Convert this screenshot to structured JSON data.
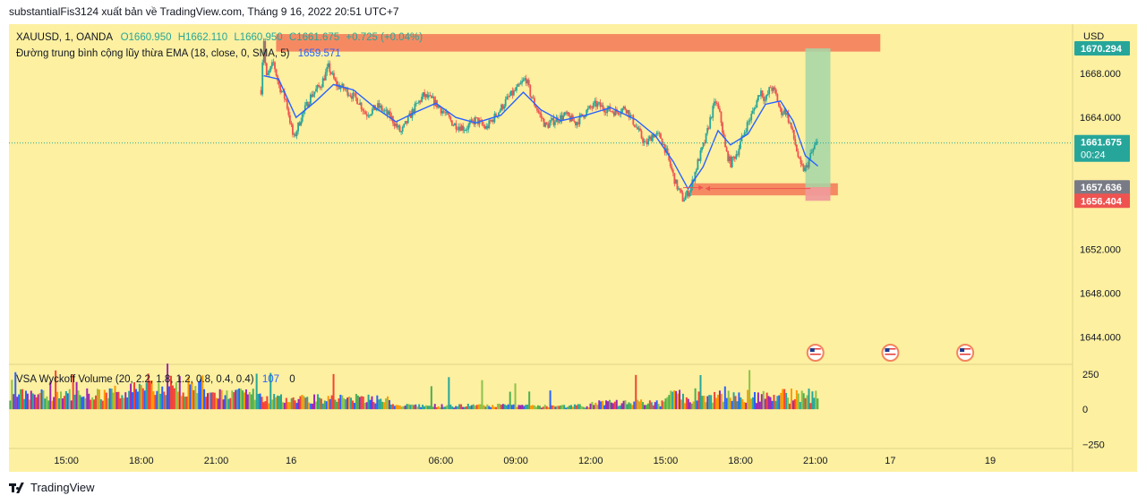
{
  "header_text": "substantialFis3124 xuất bản về TradingView.com, Tháng 9 16, 2022 20:51 UTC+7",
  "footer_text": "TradingView",
  "colors": {
    "background": "#fdf0a0",
    "up": "#26a69a",
    "down": "#ef5350",
    "ema": "#2962ff",
    "zone": "#f4845f",
    "target_zone": "#a5d6a7"
  },
  "chart_data": {
    "type": "candlestick",
    "symbol_line": {
      "symbol": "XAUUSD, 1, OANDA",
      "open": "O1660.950",
      "high": "H1662.110",
      "low": "L1660.950",
      "close": "C1661.675",
      "change": "+0.725 (+0.04%)"
    },
    "ema_line": {
      "label": "Đường trung bình cộng lũy thừa EMA (18, close, 0, SMA, 5)",
      "value": "1659.571"
    },
    "volume_line": {
      "label": "VSA Wyckoff Volume (20, 2.2, 1.8, 1.2, 0.8, 0.4, 0.4)",
      "value1": "107",
      "value2": "0"
    },
    "currency": "USD",
    "y_ticks": [
      "1668.000",
      "1664.000",
      "1652.000",
      "1648.000",
      "1644.000"
    ],
    "y_tick_values": [
      1668,
      1664,
      1652,
      1648,
      1644
    ],
    "ylim": [
      1641.5,
      1672.5
    ],
    "price_labels": [
      {
        "text": "1670.294",
        "value": 1670.294,
        "color": "#26a69a"
      },
      {
        "text": "1661.675",
        "sub": "00:24",
        "value": 1661.675,
        "color": "#26a69a"
      },
      {
        "text": "1657.636",
        "value": 1657.636,
        "color": "#787b86"
      },
      {
        "text": "1656.404",
        "value": 1656.404,
        "color": "#ef5350"
      }
    ],
    "volume_ticks": [
      "250",
      "0",
      "−250"
    ],
    "volume_tick_values": [
      250,
      0,
      -250
    ],
    "volume_lim": [
      -280,
      320
    ],
    "x_ticks": [
      {
        "label": "15:00",
        "t": 15
      },
      {
        "label": "18:00",
        "t": 18
      },
      {
        "label": "21:00",
        "t": 21
      },
      {
        "label": "16",
        "t": 24
      },
      {
        "label": "06:00",
        "t": 30
      },
      {
        "label": "09:00",
        "t": 33
      },
      {
        "label": "12:00",
        "t": 36
      },
      {
        "label": "15:00",
        "t": 39
      },
      {
        "label": "18:00",
        "t": 42
      },
      {
        "label": "21:00",
        "t": 45
      },
      {
        "label": "17",
        "t": 48
      },
      {
        "label": "19",
        "t": 52
      }
    ],
    "xlim": [
      12.7,
      55.3
    ],
    "price_path": [
      [
        22.8,
        1666.5
      ],
      [
        22.9,
        1671.5
      ],
      [
        23.0,
        1667.5
      ],
      [
        23.3,
        1669.0
      ],
      [
        23.5,
        1667.0
      ],
      [
        23.8,
        1665.5
      ],
      [
        24.1,
        1662.0
      ],
      [
        24.4,
        1664.0
      ],
      [
        24.8,
        1666.0
      ],
      [
        25.2,
        1667.0
      ],
      [
        25.5,
        1668.6
      ],
      [
        25.8,
        1667.0
      ],
      [
        26.2,
        1666.5
      ],
      [
        26.7,
        1665.5
      ],
      [
        27.0,
        1664.3
      ],
      [
        27.5,
        1665.0
      ],
      [
        28.0,
        1664.0
      ],
      [
        28.4,
        1662.6
      ],
      [
        28.9,
        1664.7
      ],
      [
        29.3,
        1666.0
      ],
      [
        29.7,
        1665.5
      ],
      [
        30.1,
        1664.5
      ],
      [
        30.5,
        1663.4
      ],
      [
        31.0,
        1663.0
      ],
      [
        31.4,
        1663.8
      ],
      [
        31.8,
        1663.0
      ],
      [
        32.3,
        1664.5
      ],
      [
        32.7,
        1665.8
      ],
      [
        33.1,
        1666.7
      ],
      [
        33.4,
        1667.6
      ],
      [
        33.6,
        1666.0
      ],
      [
        33.9,
        1664.5
      ],
      [
        34.2,
        1663.2
      ],
      [
        34.6,
        1663.8
      ],
      [
        35.0,
        1664.2
      ],
      [
        35.4,
        1663.5
      ],
      [
        35.8,
        1664.5
      ],
      [
        36.2,
        1665.2
      ],
      [
        36.6,
        1664.8
      ],
      [
        37.0,
        1664.5
      ],
      [
        37.4,
        1664.9
      ],
      [
        37.8,
        1663.2
      ],
      [
        38.2,
        1661.5
      ],
      [
        38.5,
        1662.5
      ],
      [
        38.8,
        1662.2
      ],
      [
        39.0,
        1661.0
      ],
      [
        39.2,
        1659.5
      ],
      [
        39.4,
        1658.0
      ],
      [
        39.7,
        1656.5
      ],
      [
        40.0,
        1657.5
      ],
      [
        40.3,
        1660.0
      ],
      [
        40.6,
        1662.0
      ],
      [
        40.8,
        1664.0
      ],
      [
        41.0,
        1665.5
      ],
      [
        41.2,
        1664.0
      ],
      [
        41.4,
        1661.0
      ],
      [
        41.6,
        1659.8
      ],
      [
        41.9,
        1661.0
      ],
      [
        42.2,
        1663.0
      ],
      [
        42.5,
        1664.5
      ],
      [
        42.8,
        1666.5
      ],
      [
        43.0,
        1665.5
      ],
      [
        43.2,
        1666.8
      ],
      [
        43.4,
        1666.2
      ],
      [
        43.6,
        1664.5
      ],
      [
        43.8,
        1664.6
      ],
      [
        44.0,
        1663.3
      ],
      [
        44.2,
        1661.5
      ],
      [
        44.4,
        1659.5
      ],
      [
        44.6,
        1659.2
      ],
      [
        44.8,
        1660.5
      ],
      [
        45.0,
        1661.5
      ],
      [
        45.1,
        1661.675
      ]
    ],
    "ema_path": [
      [
        22.9,
        1667.8
      ],
      [
        23.5,
        1667.5
      ],
      [
        24.2,
        1664.0
      ],
      [
        25.0,
        1665.5
      ],
      [
        25.7,
        1667.0
      ],
      [
        26.5,
        1666.5
      ],
      [
        27.3,
        1665.0
      ],
      [
        28.2,
        1663.6
      ],
      [
        29.0,
        1664.5
      ],
      [
        29.8,
        1665.3
      ],
      [
        30.6,
        1664.0
      ],
      [
        31.4,
        1663.5
      ],
      [
        32.4,
        1664.2
      ],
      [
        33.3,
        1666.3
      ],
      [
        34.0,
        1664.7
      ],
      [
        34.8,
        1663.7
      ],
      [
        35.8,
        1664.2
      ],
      [
        36.8,
        1664.9
      ],
      [
        37.8,
        1663.8
      ],
      [
        38.6,
        1662.3
      ],
      [
        39.3,
        1660.0
      ],
      [
        39.9,
        1657.5
      ],
      [
        40.5,
        1659.5
      ],
      [
        41.1,
        1662.8
      ],
      [
        41.6,
        1661.5
      ],
      [
        42.3,
        1662.5
      ],
      [
        43.0,
        1665.2
      ],
      [
        43.6,
        1665.5
      ],
      [
        44.1,
        1663.7
      ],
      [
        44.6,
        1660.5
      ],
      [
        45.1,
        1659.571
      ]
    ],
    "lines": {
      "last_price": 1661.675
    },
    "zones": [
      {
        "name": "resistance-zone",
        "x0": 23.4,
        "x1": 47.6,
        "y0": 1670.0,
        "y1": 1671.6,
        "color": "#f4845f"
      },
      {
        "name": "support-zone",
        "x0": 40.0,
        "x1": 45.9,
        "y0": 1656.9,
        "y1": 1658.0,
        "color": "#f4845f"
      },
      {
        "name": "target-zone",
        "x0": 44.6,
        "x1": 45.6,
        "y0": 1657.636,
        "y1": 1670.294,
        "color": "#a5d6a7"
      },
      {
        "name": "stop-zone",
        "x0": 44.6,
        "x1": 45.6,
        "y0": 1656.404,
        "y1": 1657.636,
        "color": "#ef9a9a"
      }
    ],
    "grid": false,
    "flag_markers": [
      45.0,
      48.0,
      51.0
    ]
  }
}
